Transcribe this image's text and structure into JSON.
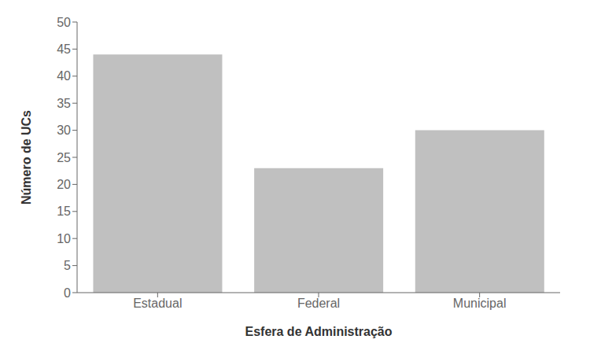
{
  "chart_data": {
    "type": "bar",
    "categories": [
      "Estadual",
      "Federal",
      "Municipal"
    ],
    "values": [
      44,
      23,
      30
    ],
    "color": "#C0C0C0",
    "xlabel": "Esfera de Administração",
    "ylabel": "Número de UCs",
    "ylim": [
      0,
      50
    ],
    "yticks": [
      0,
      5,
      10,
      15,
      20,
      25,
      30,
      35,
      40,
      45,
      50
    ]
  }
}
